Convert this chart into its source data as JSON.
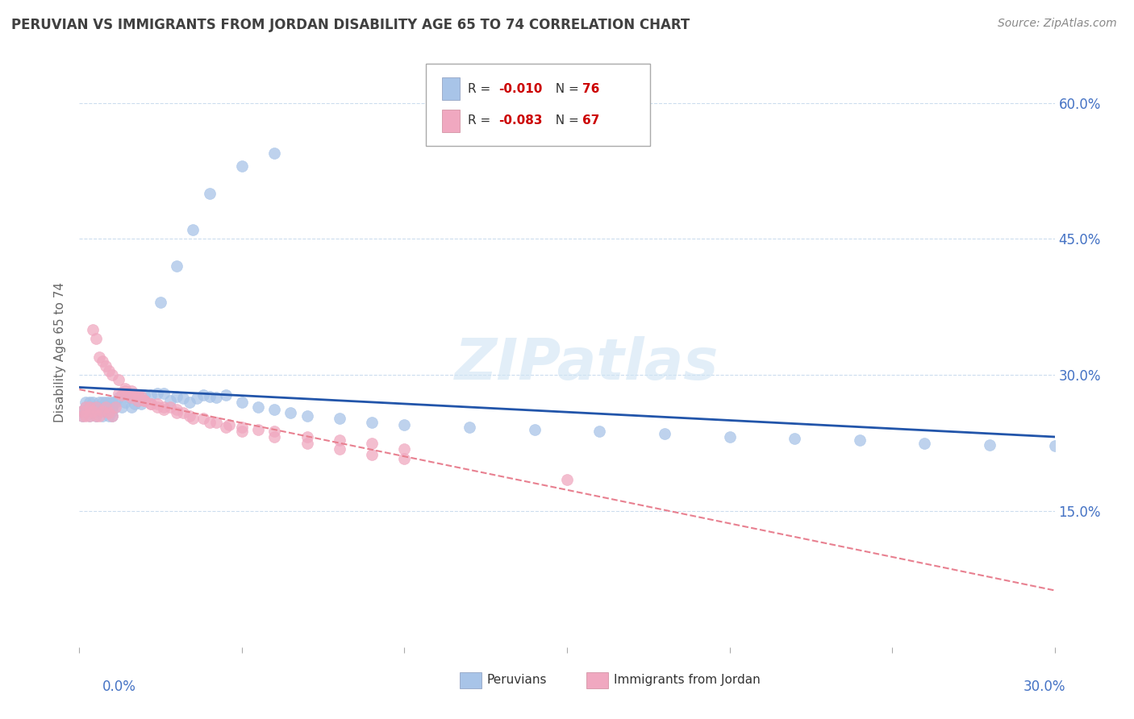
{
  "title": "PERUVIAN VS IMMIGRANTS FROM JORDAN DISABILITY AGE 65 TO 74 CORRELATION CHART",
  "source": "Source: ZipAtlas.com",
  "ylabel": "Disability Age 65 to 74",
  "xlim": [
    0.0,
    0.3
  ],
  "ylim": [
    0.0,
    0.65
  ],
  "ytick_positions": [
    0.15,
    0.3,
    0.45,
    0.6
  ],
  "ytick_labels": [
    "15.0%",
    "30.0%",
    "45.0%",
    "60.0%"
  ],
  "xtick_labels_show": [
    "0.0%",
    "30.0%"
  ],
  "legend_r1": "-0.010",
  "legend_n1": "76",
  "legend_r2": "-0.083",
  "legend_n2": "67",
  "peruvian_color": "#a8c4e8",
  "jordan_color": "#f0a8c0",
  "peruvian_trend_color": "#2255aa",
  "jordan_trend_color": "#e88090",
  "watermark": "ZIPatlas",
  "peruvian_x": [
    0.001,
    0.001,
    0.002,
    0.002,
    0.002,
    0.003,
    0.003,
    0.003,
    0.004,
    0.004,
    0.004,
    0.005,
    0.005,
    0.005,
    0.006,
    0.006,
    0.006,
    0.007,
    0.007,
    0.007,
    0.008,
    0.008,
    0.008,
    0.009,
    0.009,
    0.009,
    0.01,
    0.01,
    0.01,
    0.01,
    0.011,
    0.012,
    0.013,
    0.014,
    0.015,
    0.016,
    0.017,
    0.018,
    0.019,
    0.02,
    0.022,
    0.024,
    0.026,
    0.028,
    0.03,
    0.032,
    0.034,
    0.036,
    0.038,
    0.04,
    0.042,
    0.045,
    0.05,
    0.055,
    0.06,
    0.065,
    0.07,
    0.08,
    0.09,
    0.1,
    0.12,
    0.14,
    0.16,
    0.18,
    0.2,
    0.22,
    0.24,
    0.26,
    0.28,
    0.3,
    0.025,
    0.03,
    0.035,
    0.04,
    0.05,
    0.06
  ],
  "peruvian_y": [
    0.255,
    0.26,
    0.26,
    0.265,
    0.27,
    0.255,
    0.265,
    0.27,
    0.26,
    0.265,
    0.27,
    0.255,
    0.26,
    0.265,
    0.26,
    0.265,
    0.27,
    0.255,
    0.26,
    0.27,
    0.26,
    0.265,
    0.27,
    0.255,
    0.26,
    0.27,
    0.255,
    0.26,
    0.265,
    0.27,
    0.27,
    0.275,
    0.265,
    0.27,
    0.275,
    0.265,
    0.268,
    0.272,
    0.268,
    0.278,
    0.278,
    0.28,
    0.28,
    0.272,
    0.276,
    0.274,
    0.27,
    0.274,
    0.278,
    0.276,
    0.275,
    0.278,
    0.27,
    0.265,
    0.262,
    0.258,
    0.255,
    0.252,
    0.248,
    0.245,
    0.242,
    0.24,
    0.238,
    0.235,
    0.232,
    0.23,
    0.228,
    0.225,
    0.223,
    0.222,
    0.38,
    0.42,
    0.46,
    0.5,
    0.53,
    0.545
  ],
  "jordan_x": [
    0.001,
    0.001,
    0.002,
    0.002,
    0.003,
    0.003,
    0.004,
    0.004,
    0.005,
    0.005,
    0.005,
    0.006,
    0.006,
    0.007,
    0.007,
    0.008,
    0.008,
    0.009,
    0.009,
    0.01,
    0.01,
    0.011,
    0.012,
    0.013,
    0.014,
    0.015,
    0.016,
    0.017,
    0.018,
    0.019,
    0.02,
    0.022,
    0.024,
    0.026,
    0.028,
    0.03,
    0.032,
    0.034,
    0.038,
    0.042,
    0.046,
    0.05,
    0.055,
    0.06,
    0.07,
    0.08,
    0.09,
    0.1,
    0.012,
    0.014,
    0.016,
    0.018,
    0.02,
    0.022,
    0.024,
    0.026,
    0.03,
    0.035,
    0.04,
    0.045,
    0.05,
    0.06,
    0.07,
    0.08,
    0.09,
    0.1,
    0.15
  ],
  "jordan_y": [
    0.255,
    0.26,
    0.255,
    0.265,
    0.255,
    0.265,
    0.26,
    0.35,
    0.255,
    0.265,
    0.34,
    0.255,
    0.32,
    0.26,
    0.315,
    0.265,
    0.31,
    0.258,
    0.305,
    0.255,
    0.3,
    0.265,
    0.28,
    0.278,
    0.282,
    0.278,
    0.275,
    0.278,
    0.272,
    0.276,
    0.272,
    0.268,
    0.268,
    0.265,
    0.265,
    0.262,
    0.258,
    0.255,
    0.252,
    0.248,
    0.245,
    0.242,
    0.24,
    0.238,
    0.232,
    0.228,
    0.225,
    0.218,
    0.295,
    0.285,
    0.282,
    0.278,
    0.272,
    0.268,
    0.265,
    0.262,
    0.258,
    0.252,
    0.248,
    0.242,
    0.238,
    0.232,
    0.225,
    0.218,
    0.212,
    0.208,
    0.185
  ]
}
